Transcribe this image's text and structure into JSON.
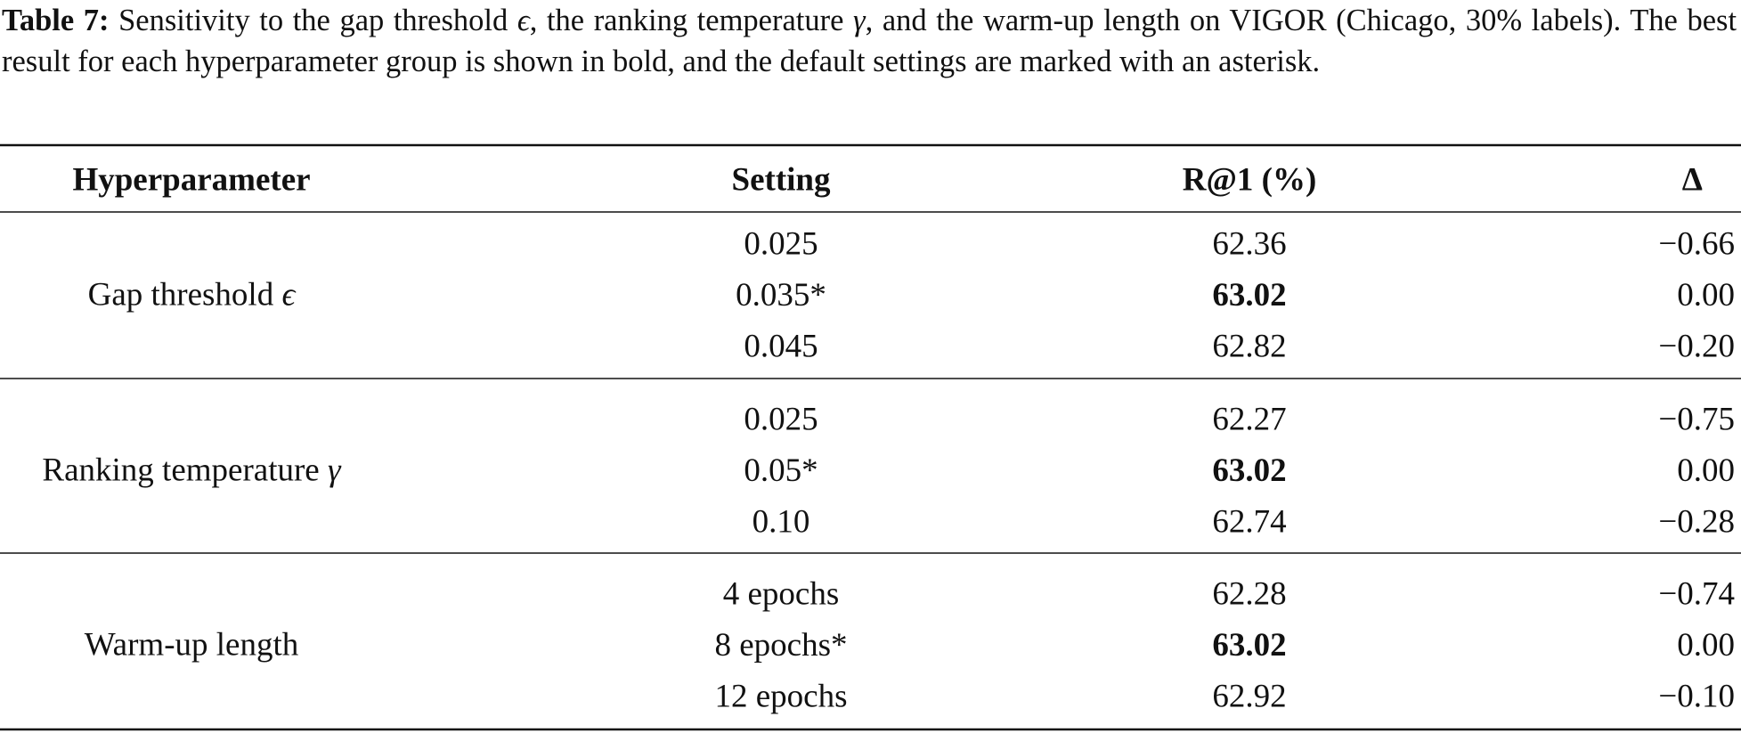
{
  "caption": {
    "label": "Table 7:",
    "parts": [
      "Sensitivity to the gap threshold ",
      "ϵ",
      ", the ranking temperature ",
      "γ",
      ", and the warm-up length on VIGOR (Chicago, 30% labels). The best result for each hyperparameter group is shown in bold, and the default settings are marked with an asterisk."
    ]
  },
  "table": {
    "header": [
      "Hyperparameter",
      "Setting",
      "R@1 (%)",
      "Δ"
    ],
    "groups": [
      {
        "name": "Gap threshold ",
        "symbol": "ϵ",
        "rows": [
          {
            "setting": "0.025",
            "r1": "62.36",
            "delta": "−0.66"
          },
          {
            "setting": "0.035*",
            "r1": "63.02",
            "delta": "0.00",
            "bold": true
          },
          {
            "setting": "0.045",
            "r1": "62.82",
            "delta": "−0.20"
          }
        ]
      },
      {
        "name": "Ranking temperature ",
        "symbol": "γ",
        "rows": [
          {
            "setting": "0.025",
            "r1": "62.27",
            "delta": "−0.75"
          },
          {
            "setting": "0.05*",
            "r1": "63.02",
            "delta": "0.00",
            "bold": true
          },
          {
            "setting": "0.10",
            "r1": "62.74",
            "delta": "−0.28"
          }
        ]
      },
      {
        "name": "Warm-up length",
        "rows": [
          {
            "setting": "4 epochs",
            "r1": "62.28",
            "delta": "−0.74"
          },
          {
            "setting": "8 epochs*",
            "r1": "63.02",
            "delta": "0.00",
            "bold": true
          },
          {
            "setting": "12 epochs",
            "r1": "62.92",
            "delta": "−0.10"
          }
        ]
      }
    ]
  }
}
